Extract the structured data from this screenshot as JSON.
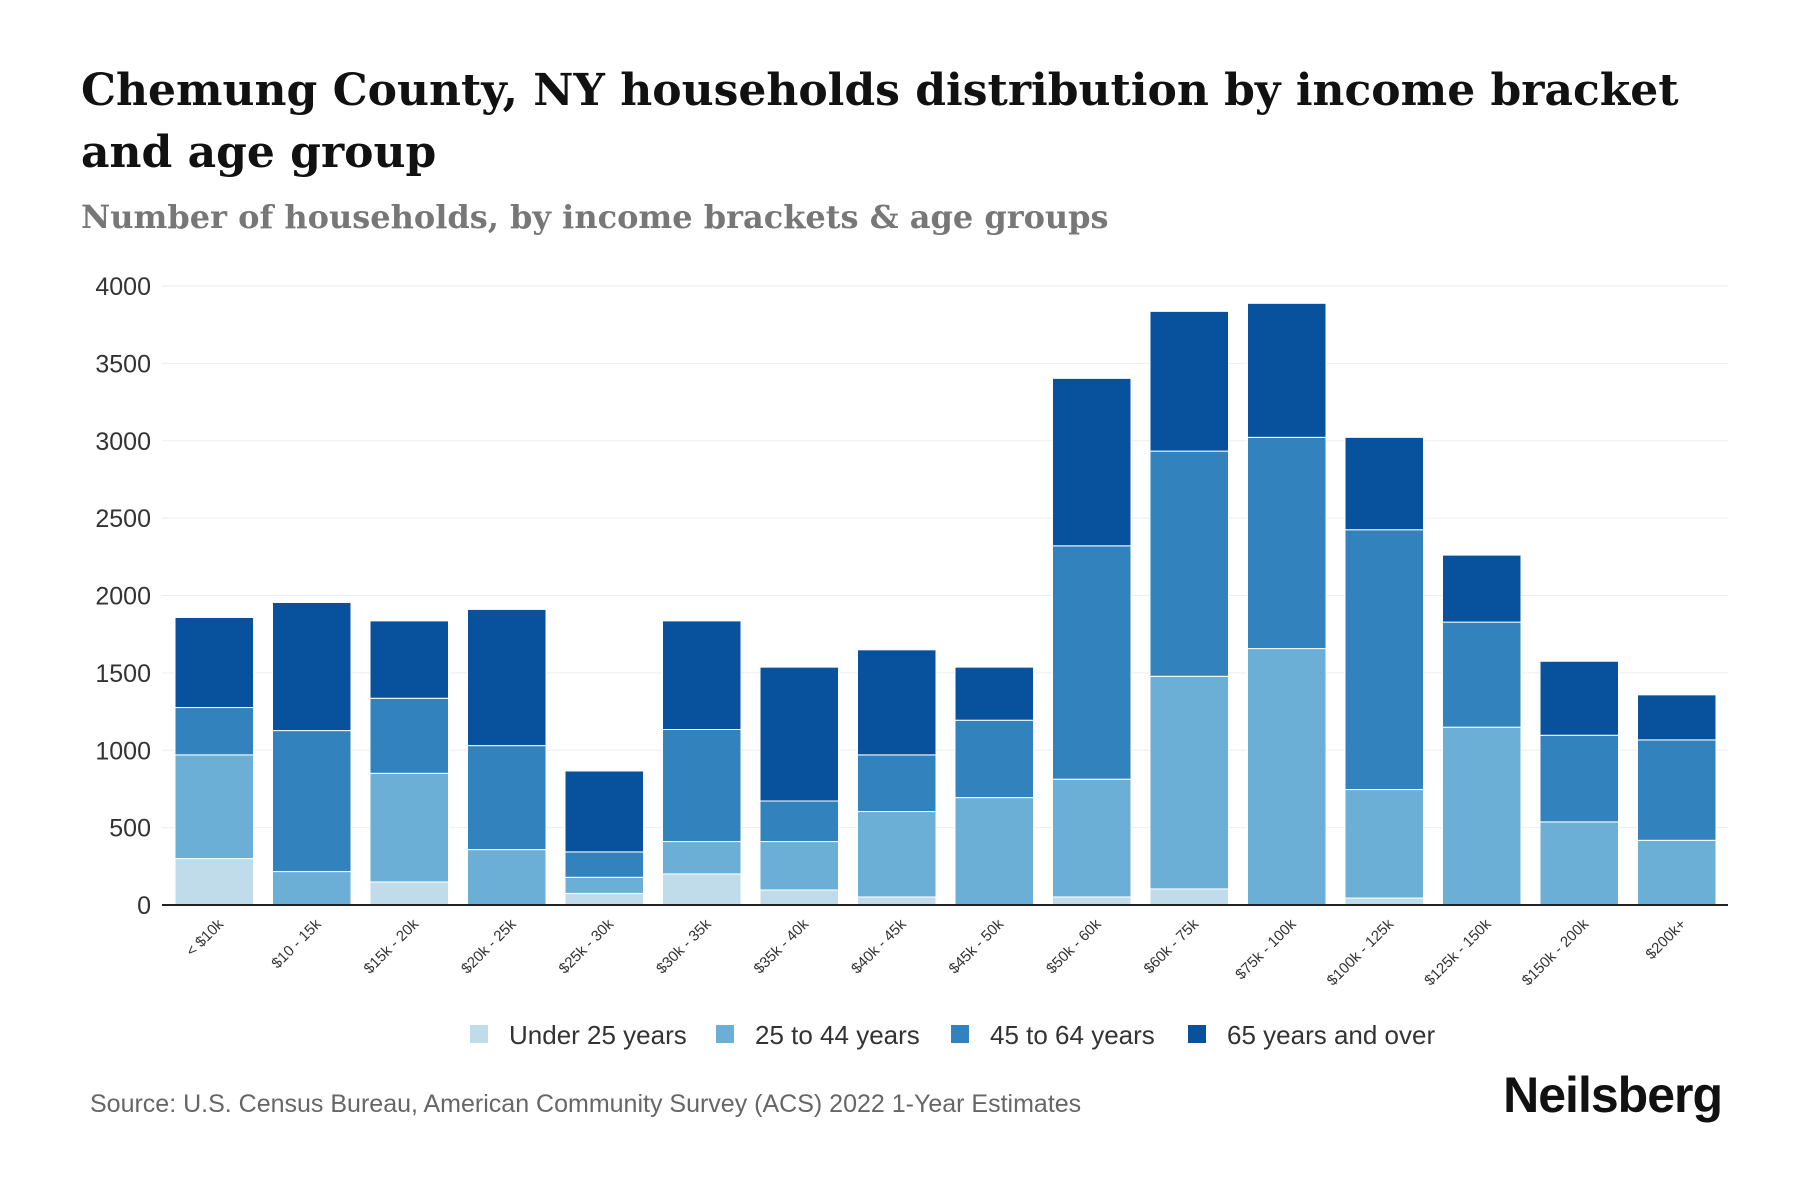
{
  "chart_data": {
    "type": "bar",
    "stacked": true,
    "title": "Chemung County, NY households distribution by income bracket and age group",
    "subtitle": "Number of households, by income brackets & age groups",
    "xlabel": "",
    "ylabel": "",
    "ylim": [
      0,
      4000
    ],
    "yticks": [
      0,
      500,
      1000,
      1500,
      2000,
      2500,
      3000,
      3500,
      4000
    ],
    "grid": true,
    "legend_position": "bottom",
    "categories": [
      "< $10k",
      "$10 - 15k",
      "$15k - 20k",
      "$20k - 25k",
      "$25k - 30k",
      "$30k - 35k",
      "$35k - 40k",
      "$40k - 45k",
      "$45k - 50k",
      "$50k - 60k",
      "$60k - 75k",
      "$75k - 100k",
      "$100k - 125k",
      "$125k - 150k",
      "$150k - 200k",
      "$200k+"
    ],
    "series": [
      {
        "name": "Under 25 years",
        "color": "#c0dbe9",
        "values": [
          300,
          0,
          149,
          0,
          75,
          201,
          97,
          52,
          0,
          52,
          104,
          0,
          45,
          0,
          0,
          0
        ]
      },
      {
        "name": "25 to 44 years",
        "color": "#6baed6",
        "values": [
          670,
          216,
          702,
          358,
          104,
          209,
          313,
          552,
          694,
          761,
          1374,
          1657,
          701,
          1149,
          537,
          418
        ]
      },
      {
        "name": "45 to 64 years",
        "color": "#3182bd",
        "values": [
          306,
          911,
          485,
          672,
          164,
          724,
          262,
          366,
          500,
          1508,
          1455,
          1365,
          1679,
          679,
          560,
          649
        ]
      },
      {
        "name": "65 years and over",
        "color": "#08519c",
        "values": [
          582,
          828,
          500,
          880,
          523,
          702,
          865,
          679,
          343,
          1082,
          903,
          866,
          597,
          433,
          478,
          291
        ]
      }
    ]
  },
  "source": "Source: U.S. Census Bureau, American Community Survey (ACS) 2022 1-Year Estimates",
  "logo": "Neilsberg"
}
